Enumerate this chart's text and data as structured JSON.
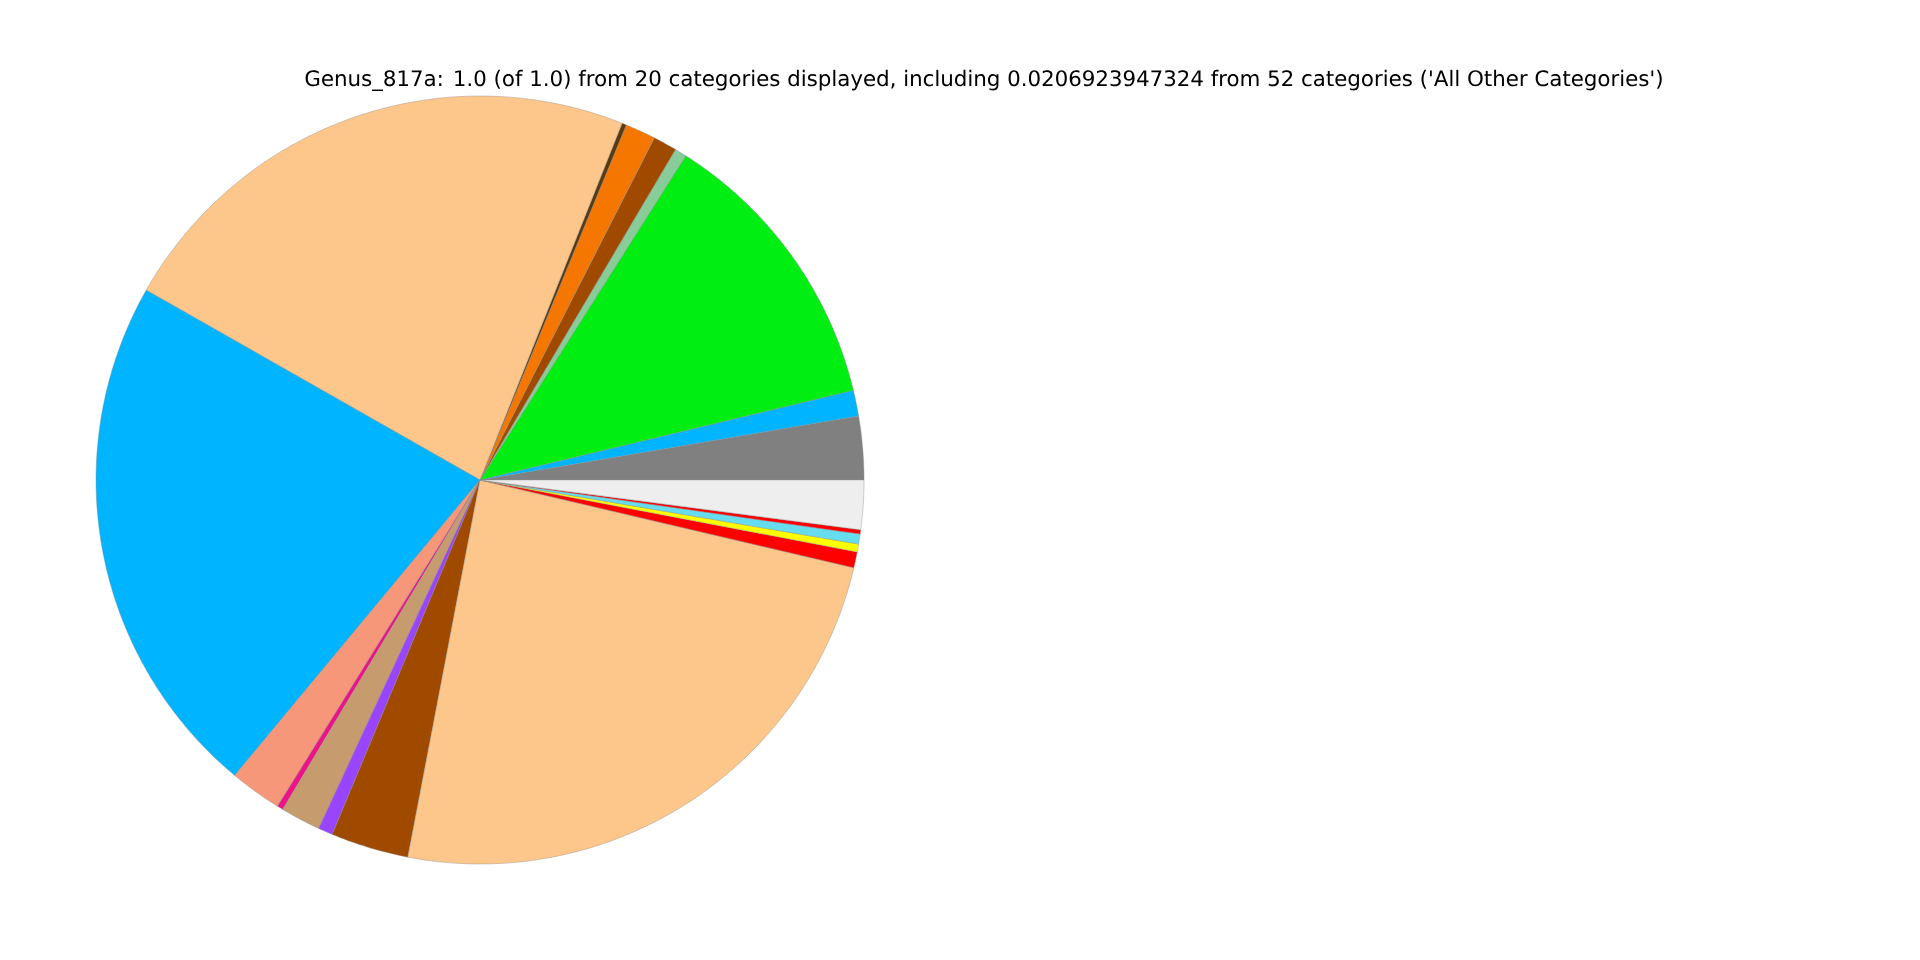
{
  "chart_data": {
    "type": "pie",
    "title": "Genus_817a: 1.0 (of 1.0) from 20 categories displayed, including 0.0206923947324 from 52 categories ('All Other Categories')",
    "categories": [
      null,
      null,
      null,
      null,
      null,
      null,
      null,
      null,
      null,
      null,
      null,
      null,
      null,
      null,
      null,
      null,
      null,
      null,
      null,
      null
    ],
    "values": [
      2.67,
      1.08,
      12.25,
      0.5,
      1.0,
      1.28,
      0.19,
      22.8,
      22.2,
      2.19,
      0.25,
      1.69,
      0.61,
      3.28,
      24.34,
      0.67,
      0.33,
      0.42,
      0.18,
      2.07
    ],
    "colors": [
      "#808080",
      "#00b4ff",
      "#00ee11",
      "#88cc99",
      "#a04a00",
      "#f57700",
      "#5c3a10",
      "#fdc68a",
      "#00b4ff",
      "#f7977a",
      "#ee1188",
      "#c69c6e",
      "#9944ff",
      "#a04a00",
      "#fdc68a",
      "#ff0000",
      "#ffff00",
      "#66ddee",
      "#ff0000",
      "#eeeeee"
    ]
  }
}
